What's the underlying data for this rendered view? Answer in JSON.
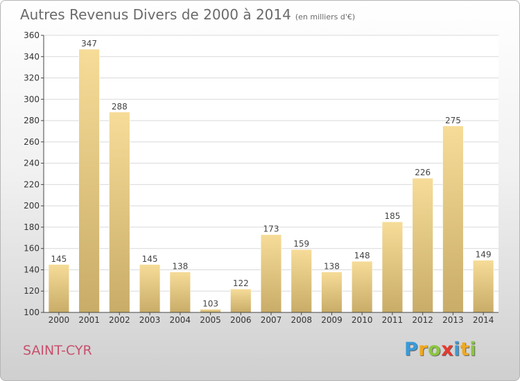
{
  "chart_data": {
    "type": "bar",
    "title": "Autres Revenus Divers de 2000 à 2014",
    "unit_note": "(en milliers d'€)",
    "categories": [
      "2000",
      "2001",
      "2002",
      "2003",
      "2004",
      "2005",
      "2006",
      "2007",
      "2008",
      "2009",
      "2010",
      "2011",
      "2012",
      "2013",
      "2014"
    ],
    "values": [
      145,
      347,
      288,
      145,
      138,
      103,
      122,
      173,
      159,
      138,
      148,
      185,
      226,
      275,
      149
    ],
    "ylim": [
      100,
      360
    ],
    "yticks": [
      100,
      120,
      140,
      160,
      180,
      200,
      220,
      240,
      260,
      280,
      300,
      320,
      340,
      360
    ],
    "grid": true,
    "colors": {
      "bar_light": "#f6dc98",
      "bar_dark": "#c8ac68",
      "grid": "#d9d9d9",
      "axis": "#444444"
    }
  },
  "place_name": "SAINT-CYR",
  "logo": {
    "letters": [
      "P",
      "r",
      "o",
      "x",
      "i",
      "t",
      "i"
    ],
    "colors": [
      "#3a9ad9",
      "#f0a820",
      "#8cc63f",
      "#e53a2f",
      "#3a9ad9",
      "#f0a820",
      "#8cc63f"
    ]
  }
}
